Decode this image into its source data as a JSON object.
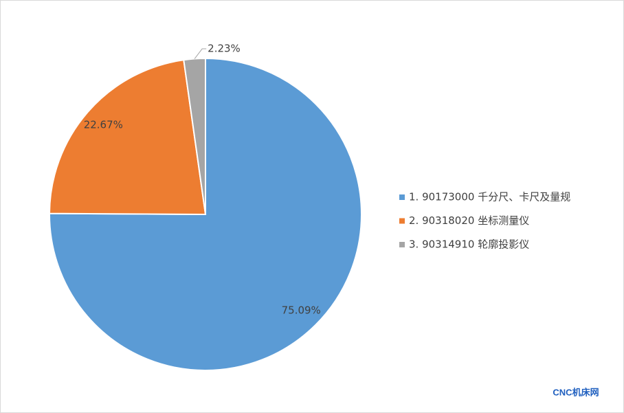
{
  "chart_data": {
    "type": "pie",
    "categories": [
      "1. 90173000 千分尺、卡尺及量规",
      "2. 90318020 坐标测量仪",
      "3. 90314910 轮廓投影仪"
    ],
    "values": [
      75.09,
      22.67,
      2.23
    ],
    "value_labels": [
      "75.09%",
      "22.67%",
      "2.23%"
    ],
    "colors": [
      "#5b9bd5",
      "#ed7d31",
      "#a5a5a5"
    ],
    "legend": "right",
    "watermark": "CNC机床网"
  }
}
